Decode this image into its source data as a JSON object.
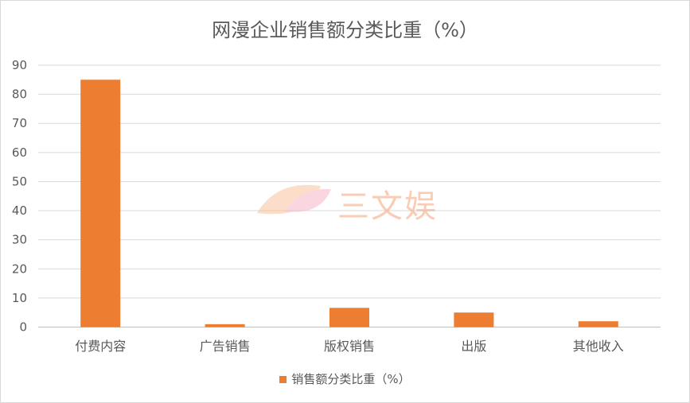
{
  "chart_data": {
    "type": "bar",
    "title": "网漫企业销售额分类比重（%）",
    "categories": [
      "付费内容",
      "广告销售",
      "版权销售",
      "出版",
      "其他收入"
    ],
    "series": [
      {
        "name": "销售额分类比重（%）",
        "values": [
          85,
          1,
          6.6,
          5,
          2
        ],
        "color": "#ed7d31"
      }
    ],
    "ylim": [
      0,
      90
    ],
    "yticks": [
      0,
      10,
      20,
      30,
      40,
      50,
      60,
      70,
      80,
      90
    ],
    "grid": true,
    "legend_position": "bottom"
  },
  "watermark": "三文娱"
}
